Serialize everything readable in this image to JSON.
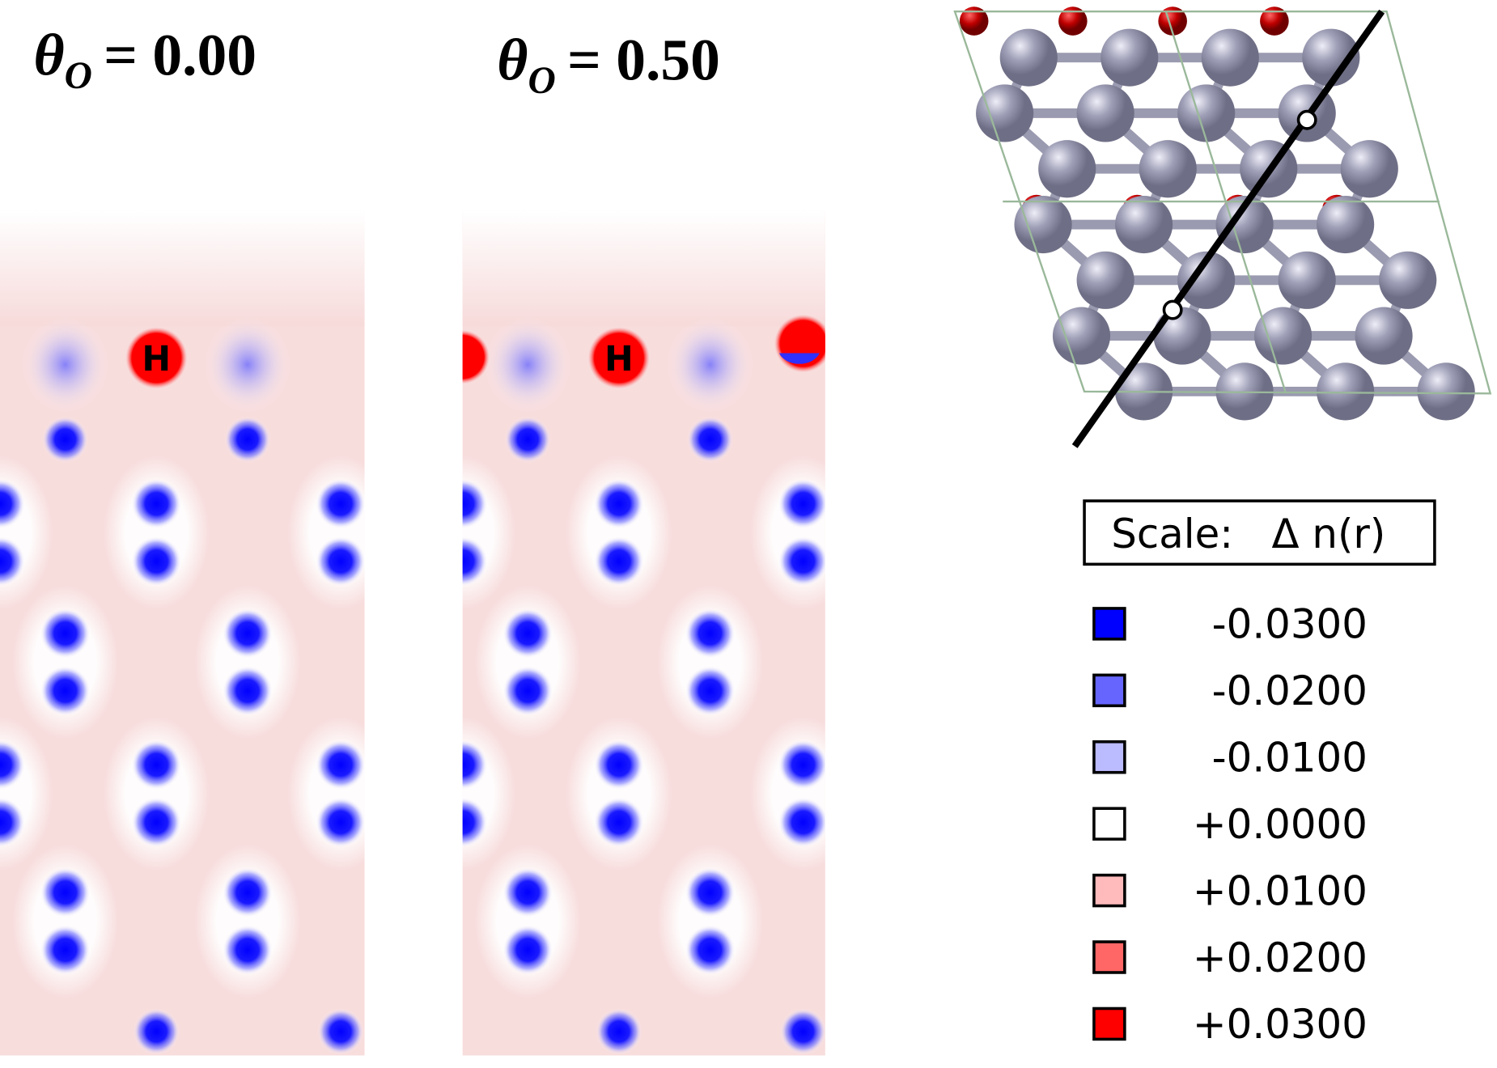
{
  "panels": [
    {
      "title": {
        "symbol": "θ",
        "subscript": "O",
        "rest": "= 0.00"
      },
      "atom_label": "H"
    },
    {
      "title": {
        "symbol": "θ",
        "subscript": "O",
        "rest": "= 0.50"
      },
      "atom_label": "H"
    }
  ],
  "legend": {
    "title": "Scale:   Δ n(r)",
    "items": [
      {
        "label": "-0.0300",
        "color": "#0000ff"
      },
      {
        "label": "-0.0200",
        "color": "#6666ff"
      },
      {
        "label": "-0.0100",
        "color": "#bbbbff"
      },
      {
        "label": "+0.0000",
        "color": "#ffffff"
      },
      {
        "label": "+0.0100",
        "color": "#ffbbbb"
      },
      {
        "label": "+0.0200",
        "color": "#ff6666"
      },
      {
        "label": "+0.0300",
        "color": "#ff0000"
      }
    ]
  }
}
